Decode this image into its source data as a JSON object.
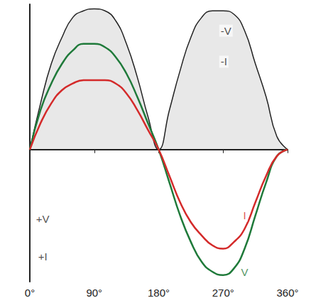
{
  "chart_data": {
    "type": "line",
    "x": [
      0,
      15,
      30,
      45,
      60,
      75,
      90,
      105,
      120,
      135,
      150,
      165,
      180,
      195,
      210,
      225,
      240,
      255,
      270,
      285,
      300,
      315,
      330,
      345,
      360
    ],
    "series": [
      {
        "type": "area",
        "color": "#222222",
        "values": [
          0,
          7,
          13,
          17,
          20,
          21,
          21.3,
          21,
          19.5,
          16,
          11,
          5,
          0,
          6,
          12,
          17,
          20,
          21,
          21,
          20.5,
          18,
          13,
          8,
          2,
          0
        ]
      },
      {
        "type": "line",
        "color": "#1f7a3a",
        "values": [
          0,
          6,
          10,
          13,
          15,
          16,
          16,
          15.5,
          14,
          11.5,
          8,
          4,
          0,
          -5,
          -10,
          -14,
          -17,
          -18.5,
          -19,
          -18,
          -15,
          -10,
          -5,
          -1,
          0
        ]
      },
      {
        "type": "line",
        "color": "#d42a2a",
        "values": [
          0,
          4,
          7,
          9,
          10,
          10.5,
          10.5,
          10.5,
          10,
          8.5,
          6,
          3,
          0,
          -4,
          -8,
          -11,
          -13,
          -14.5,
          -15,
          -14,
          -12,
          -8,
          -4,
          -1,
          0
        ]
      }
    ],
    "xlim": [
      0,
      360
    ],
    "xticks": [
      {
        "value": 0,
        "label": "0°"
      },
      {
        "value": 90,
        "label": "90°"
      },
      {
        "value": 180,
        "label": "180°"
      },
      {
        "value": 270,
        "label": "270°"
      },
      {
        "value": 360,
        "label": "360°"
      }
    ],
    "ylim": [
      -20,
      22
    ],
    "tick_labels": "x",
    "grid": false,
    "annotations": [
      {
        "text": "+V",
        "x": 18,
        "y": -10.5,
        "color": "#222222"
      },
      {
        "text": "+I",
        "x": 18,
        "y": -16.2,
        "color": "#222222"
      },
      {
        "text": "-V",
        "x": 274,
        "y": 18,
        "color": "#222222"
      },
      {
        "text": "-I",
        "x": 271,
        "y": 13.3,
        "color": "#222222"
      },
      {
        "text": "I",
        "x": 300,
        "y": -10,
        "color": "#d42a2a"
      },
      {
        "text": "V",
        "x": 300,
        "y": -18.5,
        "color": "#1f7a3a"
      }
    ]
  }
}
